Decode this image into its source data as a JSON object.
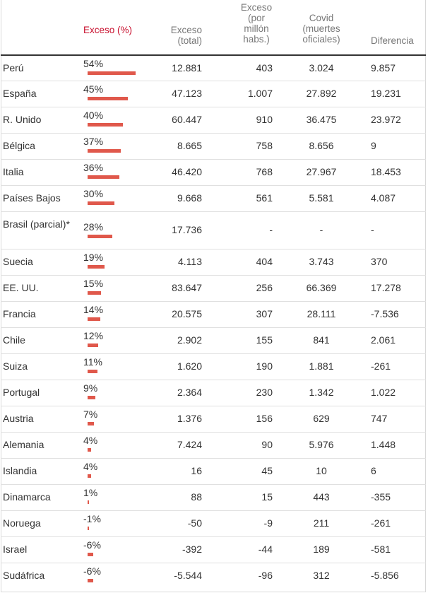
{
  "columns": {
    "excess_pct": "Exceso (%)",
    "excess_total": "Exceso (total)",
    "excess_per_million": "Exceso (por millón habs.)",
    "covid_official": "Covid (muertes oficiales)",
    "difference": "Diferencia"
  },
  "colors": {
    "accent": "#c8102e",
    "bar": "#e0584b",
    "header_rule": "#333333"
  },
  "chart_data": {
    "type": "table",
    "title": "",
    "columns": [
      "",
      "Exceso (%)",
      "Exceso (total)",
      "Exceso (por millón habs.)",
      "Covid (muertes oficiales)",
      "Diferencia"
    ],
    "bar_column": "Exceso (%)",
    "rows": [
      {
        "country": "Perú",
        "pct_label": "54%",
        "pct": 54,
        "total": "12.881",
        "per_million": "403",
        "covid": "3.024",
        "diff": "9.857"
      },
      {
        "country": "España",
        "pct_label": "45%",
        "pct": 45,
        "total": "47.123",
        "per_million": "1.007",
        "covid": "27.892",
        "diff": "19.231"
      },
      {
        "country": "R. Unido",
        "pct_label": "40%",
        "pct": 40,
        "total": "60.447",
        "per_million": "910",
        "covid": "36.475",
        "diff": "23.972"
      },
      {
        "country": "Bélgica",
        "pct_label": "37%",
        "pct": 37,
        "total": "8.665",
        "per_million": "758",
        "covid": "8.656",
        "diff": "9"
      },
      {
        "country": "Italia",
        "pct_label": "36%",
        "pct": 36,
        "total": "46.420",
        "per_million": "768",
        "covid": "27.967",
        "diff": "18.453"
      },
      {
        "country": "Países Bajos",
        "pct_label": "30%",
        "pct": 30,
        "total": "9.668",
        "per_million": "561",
        "covid": "5.581",
        "diff": "4.087"
      },
      {
        "country": "Brasil (parcial)*",
        "pct_label": "28%",
        "pct": 28,
        "total": "17.736",
        "per_million": "-",
        "covid": "-",
        "diff": "-"
      },
      {
        "country": "Suecia",
        "pct_label": "19%",
        "pct": 19,
        "total": "4.113",
        "per_million": "404",
        "covid": "3.743",
        "diff": "370"
      },
      {
        "country": "EE. UU.",
        "pct_label": "15%",
        "pct": 15,
        "total": "83.647",
        "per_million": "256",
        "covid": "66.369",
        "diff": "17.278"
      },
      {
        "country": "Francia",
        "pct_label": "14%",
        "pct": 14,
        "total": "20.575",
        "per_million": "307",
        "covid": "28.111",
        "diff": "-7.536"
      },
      {
        "country": "Chile",
        "pct_label": "12%",
        "pct": 12,
        "total": "2.902",
        "per_million": "155",
        "covid": "841",
        "diff": "2.061"
      },
      {
        "country": "Suiza",
        "pct_label": "11%",
        "pct": 11,
        "total": "1.620",
        "per_million": "190",
        "covid": "1.881",
        "diff": "-261"
      },
      {
        "country": "Portugal",
        "pct_label": "9%",
        "pct": 9,
        "total": "2.364",
        "per_million": "230",
        "covid": "1.342",
        "diff": "1.022"
      },
      {
        "country": "Austria",
        "pct_label": "7%",
        "pct": 7,
        "total": "1.376",
        "per_million": "156",
        "covid": "629",
        "diff": "747"
      },
      {
        "country": "Alemania",
        "pct_label": "4%",
        "pct": 4,
        "total": "7.424",
        "per_million": "90",
        "covid": "5.976",
        "diff": "1.448"
      },
      {
        "country": "Islandia",
        "pct_label": "4%",
        "pct": 4,
        "total": "16",
        "per_million": "45",
        "covid": "10",
        "diff": "6"
      },
      {
        "country": "Dinamarca",
        "pct_label": "1%",
        "pct": 1,
        "total": "88",
        "per_million": "15",
        "covid": "443",
        "diff": "-355"
      },
      {
        "country": "Noruega",
        "pct_label": "-1%",
        "pct": -1,
        "total": "-50",
        "per_million": "-9",
        "covid": "211",
        "diff": "-261"
      },
      {
        "country": "Israel",
        "pct_label": "-6%",
        "pct": -6,
        "total": "-392",
        "per_million": "-44",
        "covid": "189",
        "diff": "-581"
      },
      {
        "country": "Sudáfrica",
        "pct_label": "-6%",
        "pct": -6,
        "total": "-5.544",
        "per_million": "-96",
        "covid": "312",
        "diff": "-5.856"
      }
    ]
  }
}
